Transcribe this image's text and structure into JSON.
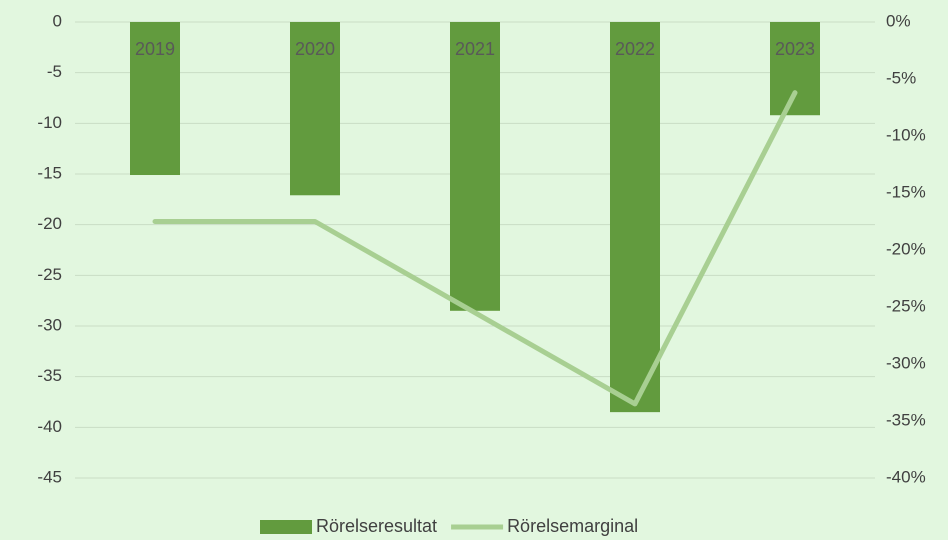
{
  "chart_data": {
    "type": "bar",
    "categories": [
      "2019",
      "2020",
      "2021",
      "2022",
      "2023"
    ],
    "series": [
      {
        "name": "Rörelseresultat",
        "color": "#629b3e",
        "values": [
          -15.1,
          -17.1,
          -28.5,
          -38.5,
          -9.2
        ]
      },
      {
        "name": "Rörelsemarginal",
        "color": "#a8cf92",
        "axis": "y2",
        "type": "line",
        "values": [
          -17.5,
          -17.5,
          -25.5,
          -33.5,
          -6.2
        ]
      }
    ],
    "ylim": [
      -45,
      0
    ],
    "yticks": [
      0,
      -5,
      -10,
      -15,
      -20,
      -25,
      -30,
      -35,
      -40,
      -45
    ],
    "y2lim": [
      -40,
      0
    ],
    "y2ticks": [
      {
        "value": 0,
        "label": "0%"
      },
      {
        "value": -5,
        "label": "-5%"
      },
      {
        "value": -10,
        "label": "-10%"
      },
      {
        "value": -15,
        "label": "-15%"
      },
      {
        "value": -20,
        "label": "-20%"
      },
      {
        "value": -25,
        "label": "-25%"
      },
      {
        "value": -30,
        "label": "-30%"
      },
      {
        "value": -35,
        "label": "-35%"
      },
      {
        "value": -40,
        "label": "-40%"
      }
    ],
    "grid": true,
    "legend": "bottom"
  }
}
